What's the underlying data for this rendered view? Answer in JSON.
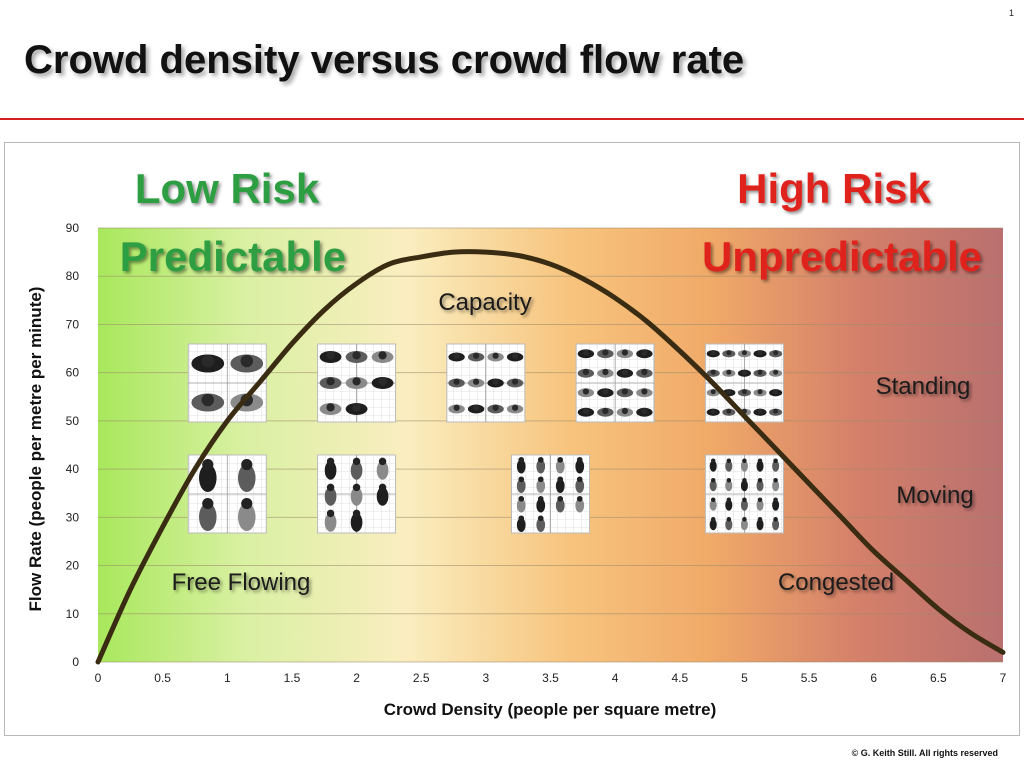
{
  "slide": {
    "number": "1",
    "title": "Crowd density versus crowd flow rate",
    "copyright": "© G. Keith Still. All rights reserved"
  },
  "colors": {
    "low_risk": "#2f9e43",
    "high_risk": "#e0221c",
    "curve": "#3a2c12",
    "title_rule": "#d42020"
  },
  "chart_data": {
    "type": "line",
    "xlabel": "Crowd Density (people per square metre)",
    "ylabel": "Flow Rate (people per metre per minute)",
    "xlim": [
      0,
      7
    ],
    "ylim": [
      0,
      90
    ],
    "x_ticks": [
      "0",
      "0.5",
      "1",
      "1.5",
      "2",
      "2.5",
      "3",
      "3.5",
      "4",
      "4.5",
      "5",
      "5.5",
      "6",
      "6.5",
      "7"
    ],
    "y_ticks": [
      "0",
      "10",
      "20",
      "30",
      "40",
      "50",
      "60",
      "70",
      "80",
      "90"
    ],
    "grid": "horizontal",
    "background": "gradient green-yellow-orange-red",
    "series": [
      {
        "x": [
          0,
          0.25,
          0.5,
          0.75,
          1,
          1.25,
          1.5,
          1.75,
          2,
          2.25,
          2.5,
          2.75,
          3,
          3.25,
          3.5,
          3.75,
          4,
          4.25,
          4.5,
          4.75,
          5,
          5.25,
          5.5,
          5.75,
          6,
          6.25,
          6.5,
          6.75,
          7
        ],
        "y": [
          0,
          15,
          28,
          40,
          50,
          58,
          66,
          73,
          78.5,
          82.5,
          84,
          85,
          85,
          84.3,
          82.5,
          79.5,
          75.5,
          70.5,
          64.5,
          58,
          51,
          44,
          37,
          30,
          23,
          17,
          11,
          6,
          2
        ]
      }
    ],
    "annotations": {
      "low_risk": "Low Risk",
      "predictable": "Predictable",
      "high_risk": "High Risk",
      "unpredictable": "Unpredictable",
      "capacity": "Capacity",
      "standing": "Standing",
      "moving": "Moving",
      "free_flowing": "Free Flowing",
      "congested": "Congested"
    },
    "illustrations": {
      "standing": [
        {
          "density": 1,
          "figures": 4
        },
        {
          "density": 2,
          "figures": 8
        },
        {
          "density": 3,
          "figures": 12
        },
        {
          "density": 4,
          "figures": 16
        },
        {
          "density": 5,
          "figures": 20
        }
      ],
      "moving": [
        {
          "density": 1,
          "figures": 4
        },
        {
          "density": 2,
          "figures": 8
        },
        {
          "density": 3.5,
          "figures": 14
        },
        {
          "density": 5,
          "figures": 20
        }
      ]
    }
  }
}
